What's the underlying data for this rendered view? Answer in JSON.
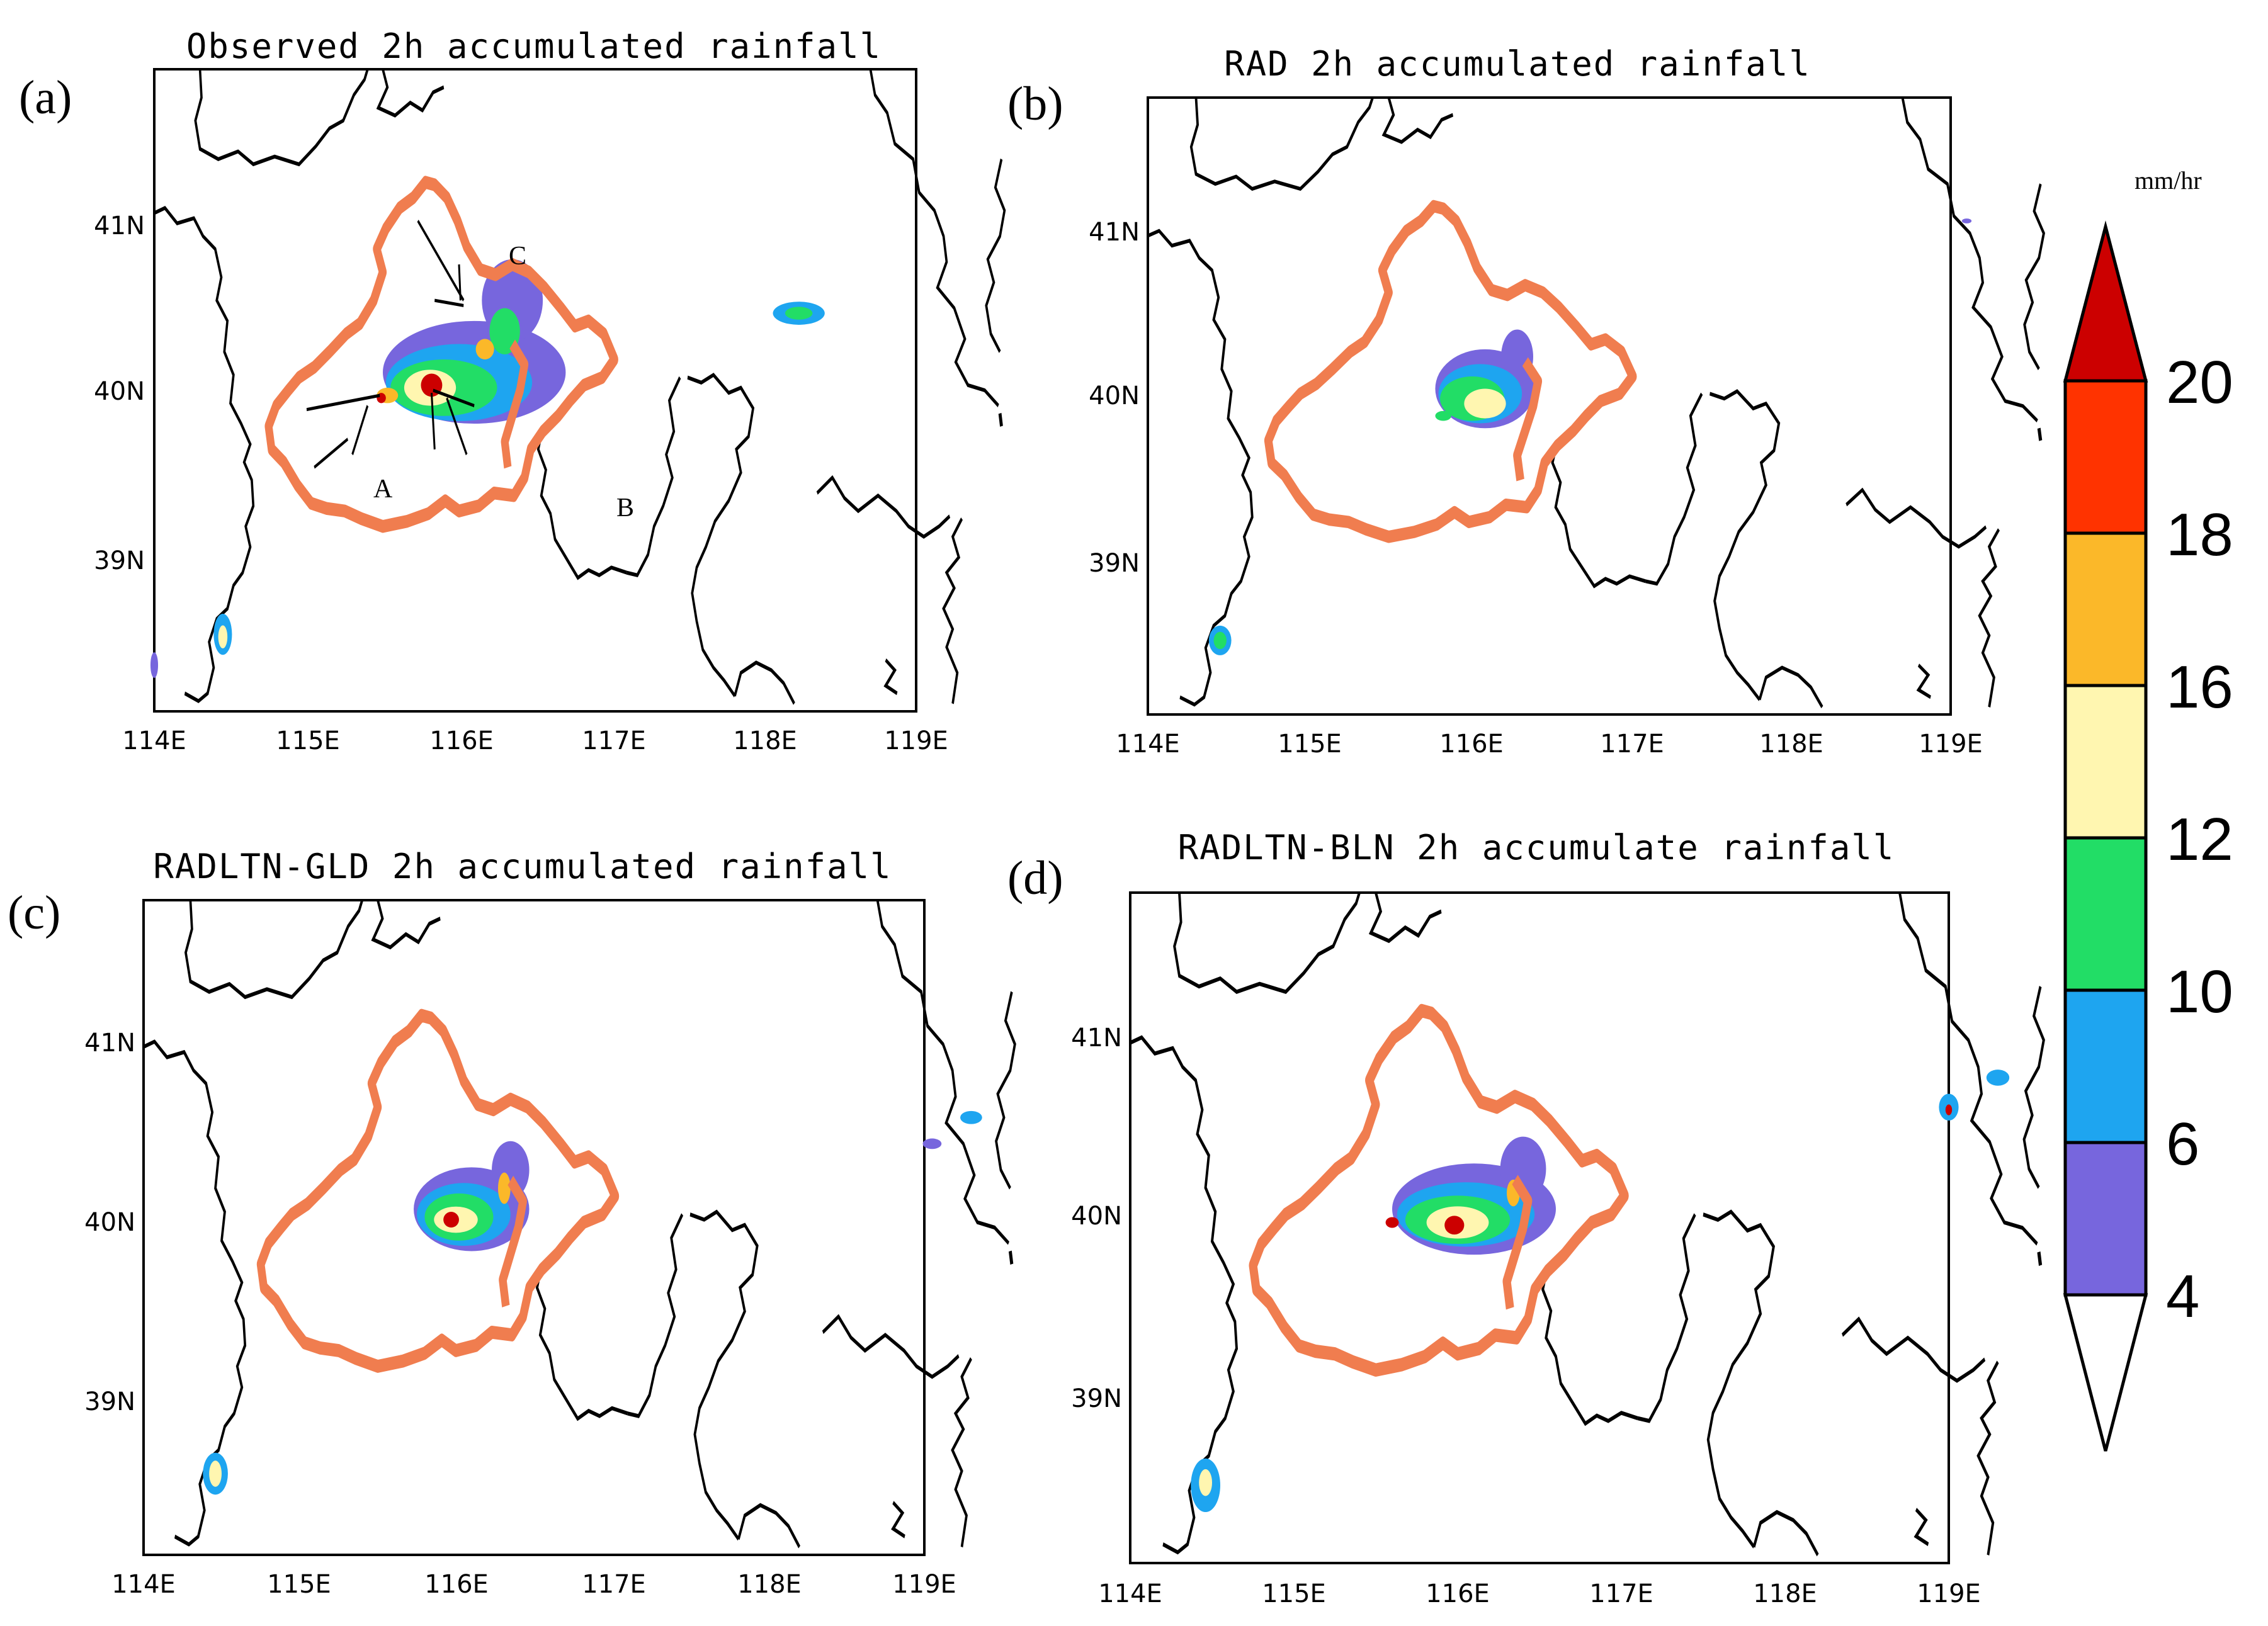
{
  "panels": [
    {
      "label": "(a)",
      "title": "Observed 2h accumulated rainfall"
    },
    {
      "label": "(b)",
      "title": "RAD 2h accumulated rainfall"
    },
    {
      "label": "(c)",
      "title": "RADLTN-GLD 2h accumulated rainfall"
    },
    {
      "label": "(d)",
      "title": "RADLTN-BLN 2h accumulate rainfall"
    }
  ],
  "x_ticks": [
    "114E",
    "115E",
    "116E",
    "117E",
    "118E",
    "119E"
  ],
  "y_ticks": [
    "41N",
    "40N",
    "39N"
  ],
  "annotations": [
    "A",
    "B",
    "C"
  ],
  "colorbar": {
    "unit": "mm/hr",
    "ticks": [
      "20",
      "18",
      "16",
      "12",
      "10",
      "6",
      "4"
    ],
    "colors": [
      "#cc0000",
      "#ff3300",
      "#fbb829",
      "#fff6b0",
      "#22dd66",
      "#1ea5f0",
      "#7766dd",
      "#ffffff"
    ]
  },
  "boundary_color": "#f07d4f"
}
